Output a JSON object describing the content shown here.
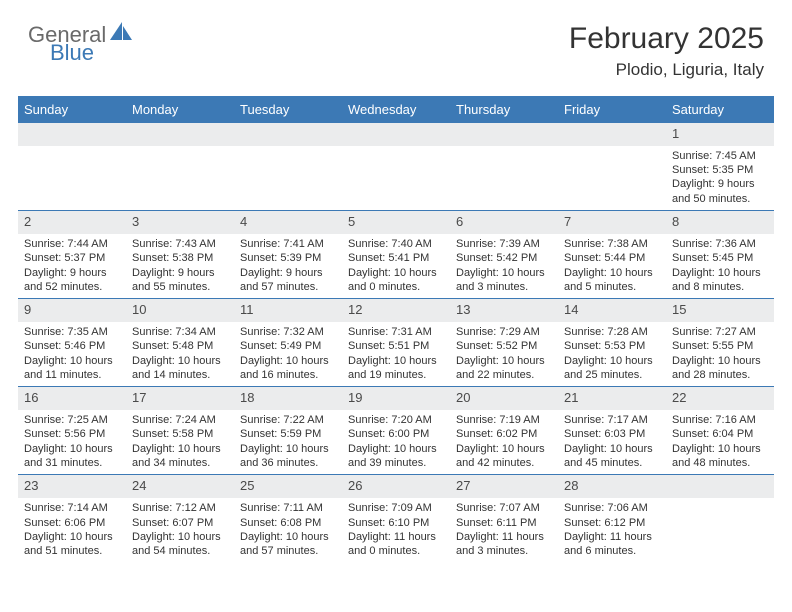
{
  "logo": {
    "top": "General",
    "bottom": "Blue"
  },
  "title": "February 2025",
  "location": "Plodio, Liguria, Italy",
  "colors": {
    "header_bg": "#3c79b5",
    "header_text": "#ffffff",
    "daynum_bg": "#ebeced",
    "border": "#3c79b5",
    "text": "#333333",
    "logo_gray": "#6a6a6a",
    "logo_blue": "#3c79b5"
  },
  "day_headers": [
    "Sunday",
    "Monday",
    "Tuesday",
    "Wednesday",
    "Thursday",
    "Friday",
    "Saturday"
  ],
  "weeks": [
    [
      null,
      null,
      null,
      null,
      null,
      null,
      {
        "n": "1",
        "sunrise": "7:45 AM",
        "sunset": "5:35 PM",
        "day_h": "9",
        "day_m": "50"
      }
    ],
    [
      {
        "n": "2",
        "sunrise": "7:44 AM",
        "sunset": "5:37 PM",
        "day_h": "9",
        "day_m": "52"
      },
      {
        "n": "3",
        "sunrise": "7:43 AM",
        "sunset": "5:38 PM",
        "day_h": "9",
        "day_m": "55"
      },
      {
        "n": "4",
        "sunrise": "7:41 AM",
        "sunset": "5:39 PM",
        "day_h": "9",
        "day_m": "57"
      },
      {
        "n": "5",
        "sunrise": "7:40 AM",
        "sunset": "5:41 PM",
        "day_h": "10",
        "day_m": "0"
      },
      {
        "n": "6",
        "sunrise": "7:39 AM",
        "sunset": "5:42 PM",
        "day_h": "10",
        "day_m": "3"
      },
      {
        "n": "7",
        "sunrise": "7:38 AM",
        "sunset": "5:44 PM",
        "day_h": "10",
        "day_m": "5"
      },
      {
        "n": "8",
        "sunrise": "7:36 AM",
        "sunset": "5:45 PM",
        "day_h": "10",
        "day_m": "8"
      }
    ],
    [
      {
        "n": "9",
        "sunrise": "7:35 AM",
        "sunset": "5:46 PM",
        "day_h": "10",
        "day_m": "11"
      },
      {
        "n": "10",
        "sunrise": "7:34 AM",
        "sunset": "5:48 PM",
        "day_h": "10",
        "day_m": "14"
      },
      {
        "n": "11",
        "sunrise": "7:32 AM",
        "sunset": "5:49 PM",
        "day_h": "10",
        "day_m": "16"
      },
      {
        "n": "12",
        "sunrise": "7:31 AM",
        "sunset": "5:51 PM",
        "day_h": "10",
        "day_m": "19"
      },
      {
        "n": "13",
        "sunrise": "7:29 AM",
        "sunset": "5:52 PM",
        "day_h": "10",
        "day_m": "22"
      },
      {
        "n": "14",
        "sunrise": "7:28 AM",
        "sunset": "5:53 PM",
        "day_h": "10",
        "day_m": "25"
      },
      {
        "n": "15",
        "sunrise": "7:27 AM",
        "sunset": "5:55 PM",
        "day_h": "10",
        "day_m": "28"
      }
    ],
    [
      {
        "n": "16",
        "sunrise": "7:25 AM",
        "sunset": "5:56 PM",
        "day_h": "10",
        "day_m": "31"
      },
      {
        "n": "17",
        "sunrise": "7:24 AM",
        "sunset": "5:58 PM",
        "day_h": "10",
        "day_m": "34"
      },
      {
        "n": "18",
        "sunrise": "7:22 AM",
        "sunset": "5:59 PM",
        "day_h": "10",
        "day_m": "36"
      },
      {
        "n": "19",
        "sunrise": "7:20 AM",
        "sunset": "6:00 PM",
        "day_h": "10",
        "day_m": "39"
      },
      {
        "n": "20",
        "sunrise": "7:19 AM",
        "sunset": "6:02 PM",
        "day_h": "10",
        "day_m": "42"
      },
      {
        "n": "21",
        "sunrise": "7:17 AM",
        "sunset": "6:03 PM",
        "day_h": "10",
        "day_m": "45"
      },
      {
        "n": "22",
        "sunrise": "7:16 AM",
        "sunset": "6:04 PM",
        "day_h": "10",
        "day_m": "48"
      }
    ],
    [
      {
        "n": "23",
        "sunrise": "7:14 AM",
        "sunset": "6:06 PM",
        "day_h": "10",
        "day_m": "51"
      },
      {
        "n": "24",
        "sunrise": "7:12 AM",
        "sunset": "6:07 PM",
        "day_h": "10",
        "day_m": "54"
      },
      {
        "n": "25",
        "sunrise": "7:11 AM",
        "sunset": "6:08 PM",
        "day_h": "10",
        "day_m": "57"
      },
      {
        "n": "26",
        "sunrise": "7:09 AM",
        "sunset": "6:10 PM",
        "day_h": "11",
        "day_m": "0"
      },
      {
        "n": "27",
        "sunrise": "7:07 AM",
        "sunset": "6:11 PM",
        "day_h": "11",
        "day_m": "3"
      },
      {
        "n": "28",
        "sunrise": "7:06 AM",
        "sunset": "6:12 PM",
        "day_h": "11",
        "day_m": "6"
      },
      null
    ]
  ],
  "labels": {
    "sunrise": "Sunrise:",
    "sunset": "Sunset:",
    "daylight": "Daylight:",
    "hours": "hours",
    "and": "and",
    "minutes": "minutes."
  }
}
